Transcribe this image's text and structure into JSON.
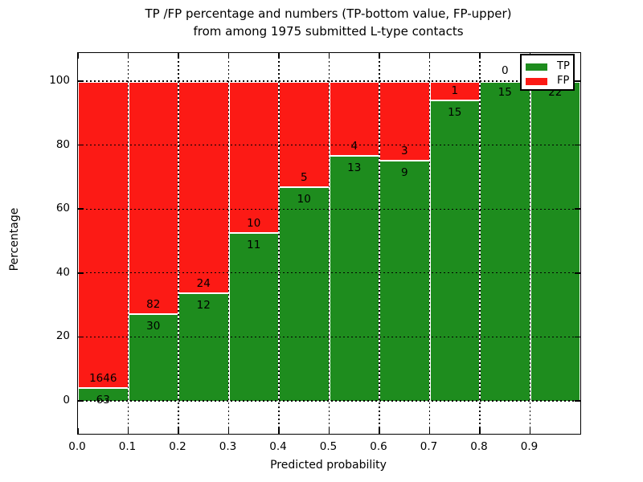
{
  "title": {
    "line1": "TP /FP percentage and numbers (TP-bottom value, FP-upper)",
    "line2": "from among 1975 submitted L-type contacts"
  },
  "axes": {
    "xlabel": "Predicted probability",
    "ylabel": "Percentage",
    "xlim": [
      0.0,
      1.0
    ],
    "ylim_percent": [
      -10.3,
      108.8
    ],
    "xticks": [
      "0.0",
      "0.1",
      "0.2",
      "0.3",
      "0.4",
      "0.5",
      "0.6",
      "0.7",
      "0.8",
      "0.9"
    ],
    "yticks": [
      "0",
      "20",
      "40",
      "60",
      "80",
      "100"
    ],
    "ytick_values": [
      0,
      20,
      40,
      60,
      80,
      100
    ],
    "grid_style": "dotted"
  },
  "legend": {
    "position": "upper right",
    "items": [
      {
        "label": "TP",
        "color": "#1e8c1e"
      },
      {
        "label": "FP",
        "color": "#fc1a15"
      }
    ]
  },
  "chart_data": {
    "type": "bar",
    "stacked": true,
    "normalized_to_percent": true,
    "title": "TP /FP percentage and numbers (TP-bottom value, FP-upper) from among 1975 submitted L-type contacts",
    "xlabel": "Predicted probability",
    "ylabel": "Percentage",
    "total_contacts": 1975,
    "bin_width": 0.1,
    "series_names": [
      "TP",
      "FP"
    ],
    "bins": [
      {
        "x_start": 0.0,
        "x_end": 0.1,
        "tp": 63,
        "fp": 1646
      },
      {
        "x_start": 0.1,
        "x_end": 0.2,
        "tp": 30,
        "fp": 82
      },
      {
        "x_start": 0.2,
        "x_end": 0.3,
        "tp": 12,
        "fp": 24
      },
      {
        "x_start": 0.3,
        "x_end": 0.4,
        "tp": 11,
        "fp": 10
      },
      {
        "x_start": 0.4,
        "x_end": 0.5,
        "tp": 10,
        "fp": 5
      },
      {
        "x_start": 0.5,
        "x_end": 0.6,
        "tp": 13,
        "fp": 4
      },
      {
        "x_start": 0.6,
        "x_end": 0.7,
        "tp": 9,
        "fp": 3
      },
      {
        "x_start": 0.7,
        "x_end": 0.8,
        "tp": 15,
        "fp": 1
      },
      {
        "x_start": 0.8,
        "x_end": 0.9,
        "tp": 15,
        "fp": 0
      },
      {
        "x_start": 0.9,
        "x_end": 1.0,
        "tp": 22,
        "fp": 0
      }
    ]
  },
  "colors": {
    "background": "#ffffff",
    "tp_green": "#1e8c1e",
    "fp_red": "#fc1a15",
    "bar_edge": "#ffffff",
    "spine": "#000000",
    "grid": "#000000",
    "text": "#000000"
  }
}
